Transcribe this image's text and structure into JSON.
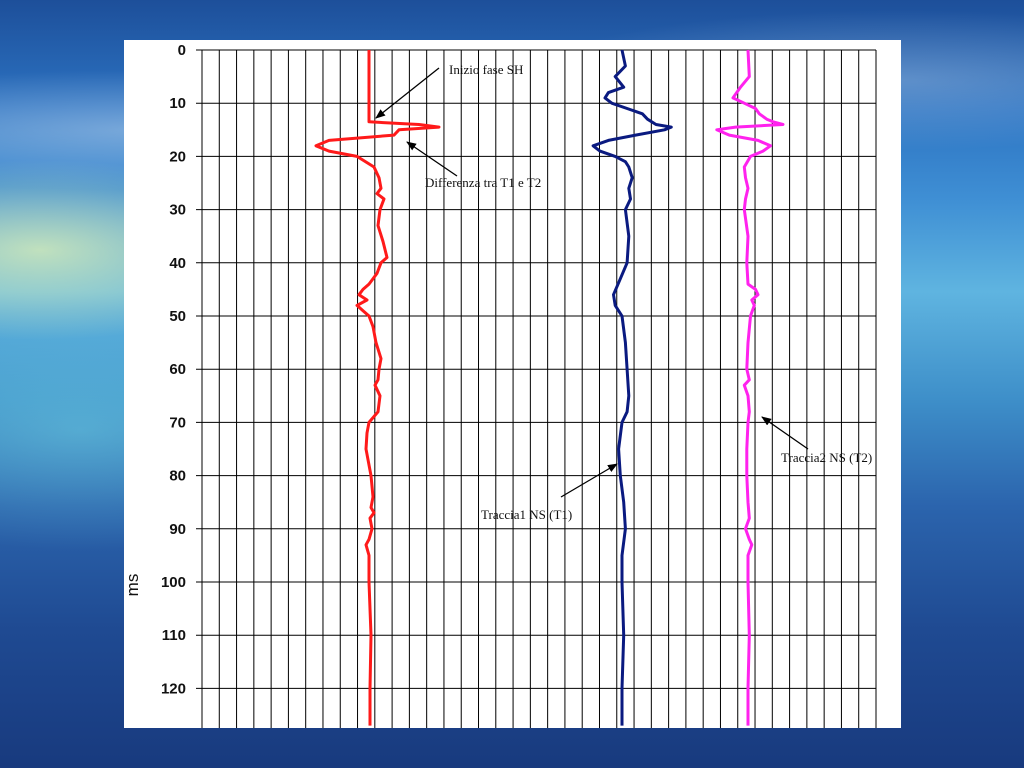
{
  "slide": {
    "background_colors": [
      "#1d4f9a",
      "#5fb4e0",
      "#183a7e"
    ]
  },
  "chart_data": {
    "type": "line",
    "orientation": "vertical-traces",
    "ylabel": "ms",
    "ylim": [
      0,
      127
    ],
    "y_ticks": [
      0,
      10,
      20,
      30,
      40,
      50,
      60,
      70,
      80,
      90,
      100,
      110,
      120
    ],
    "grid": true,
    "grid_vertical_lines": 40,
    "series": [
      {
        "color": "#ff1a1a",
        "name": "Traccia1 NS (T1) - Traccia2 NS (T2)",
        "t": [
          0,
          13.5,
          14,
          14.5,
          15,
          16,
          17,
          18,
          19,
          20,
          22,
          24,
          26,
          27,
          28,
          30,
          33,
          36,
          39,
          40,
          42,
          44,
          45,
          46,
          47,
          48,
          49,
          50,
          52,
          55,
          58,
          60,
          62,
          63,
          65,
          68,
          70,
          72,
          75,
          78,
          80,
          84,
          86,
          87,
          88,
          90,
          92,
          93,
          95,
          100,
          110,
          120,
          127
        ],
        "amp": [
          0.0,
          0.0,
          5.0,
          7.0,
          3.0,
          2.5,
          -4.0,
          -5.3,
          -4.0,
          -1.2,
          0.5,
          1.0,
          1.2,
          0.8,
          1.5,
          1.1,
          0.9,
          1.4,
          1.8,
          1.2,
          0.8,
          0.0,
          -0.6,
          -1.0,
          -0.2,
          -1.2,
          -0.6,
          0.0,
          0.4,
          0.7,
          1.2,
          1.0,
          0.9,
          0.6,
          1.1,
          0.9,
          0.0,
          -0.2,
          -0.3,
          0.0,
          0.2,
          0.4,
          0.2,
          0.5,
          0.1,
          0.3,
          0.0,
          -0.3,
          0.0,
          0.0,
          0.2,
          0.1,
          0.1
        ]
      },
      {
        "color": "#0a1a80",
        "name": "Traccia1 NS (T1)",
        "t": [
          0,
          3,
          5,
          7,
          8,
          9,
          10,
          11,
          12,
          13,
          14,
          14.5,
          15,
          16,
          17,
          18,
          19,
          20,
          21,
          22,
          24,
          26,
          28,
          30,
          35,
          40,
          43,
          46,
          48,
          50,
          55,
          60,
          65,
          68,
          70,
          75,
          80,
          85,
          90,
          95,
          100,
          110,
          120,
          127
        ],
        "amp": [
          0.0,
          0.2,
          -0.4,
          0.1,
          -0.8,
          -1.0,
          -0.6,
          0.3,
          1.2,
          1.5,
          2.0,
          2.9,
          2.5,
          0.8,
          -0.8,
          -1.7,
          -1.3,
          -0.4,
          0.2,
          0.4,
          0.6,
          0.4,
          0.5,
          0.2,
          0.4,
          0.3,
          -0.1,
          -0.5,
          -0.4,
          0.0,
          0.2,
          0.3,
          0.4,
          0.3,
          0.0,
          -0.2,
          -0.1,
          0.1,
          0.2,
          0.0,
          0.0,
          0.1,
          0.0,
          0.0
        ]
      },
      {
        "color": "#ff22ee",
        "name": "Traccia2 NS (T2)",
        "t": [
          0,
          5,
          7,
          9,
          10,
          11,
          12,
          13,
          13.5,
          14,
          14.5,
          15,
          16,
          17,
          18,
          19,
          20,
          22,
          24,
          26,
          28,
          30,
          35,
          40,
          44,
          45,
          46,
          47,
          48,
          50,
          55,
          60,
          62,
          63,
          65,
          68,
          70,
          75,
          80,
          85,
          88,
          90,
          92,
          93,
          95,
          100,
          110,
          120,
          127
        ],
        "amp": [
          0.0,
          0.1,
          -0.6,
          -1.2,
          -0.3,
          0.6,
          0.9,
          1.5,
          2.0,
          2.8,
          -1.0,
          -2.5,
          -1.5,
          0.8,
          1.8,
          1.2,
          0.2,
          -0.3,
          -0.2,
          0.0,
          -0.2,
          -0.3,
          0.0,
          -0.1,
          0.0,
          0.6,
          0.8,
          0.3,
          0.5,
          0.2,
          0.0,
          -0.1,
          0.1,
          -0.3,
          0.0,
          0.1,
          0.0,
          -0.1,
          -0.1,
          0.0,
          0.1,
          -0.2,
          0.1,
          0.3,
          0.0,
          0.0,
          0.1,
          0.0,
          0.0
        ]
      }
    ],
    "annotations": [
      {
        "text": "Inizio fase SH",
        "target_series": 0,
        "target_t": 13.5
      },
      {
        "text": "Differenza tra T1 e T2",
        "target_series": 0,
        "target_t": 16.5
      },
      {
        "text": "Traccia1 NS (T1)",
        "target_series": 1,
        "target_t": 77
      },
      {
        "text": "Traccia2 NS (T2)",
        "target_series": 2,
        "target_t": 68.5
      }
    ]
  }
}
